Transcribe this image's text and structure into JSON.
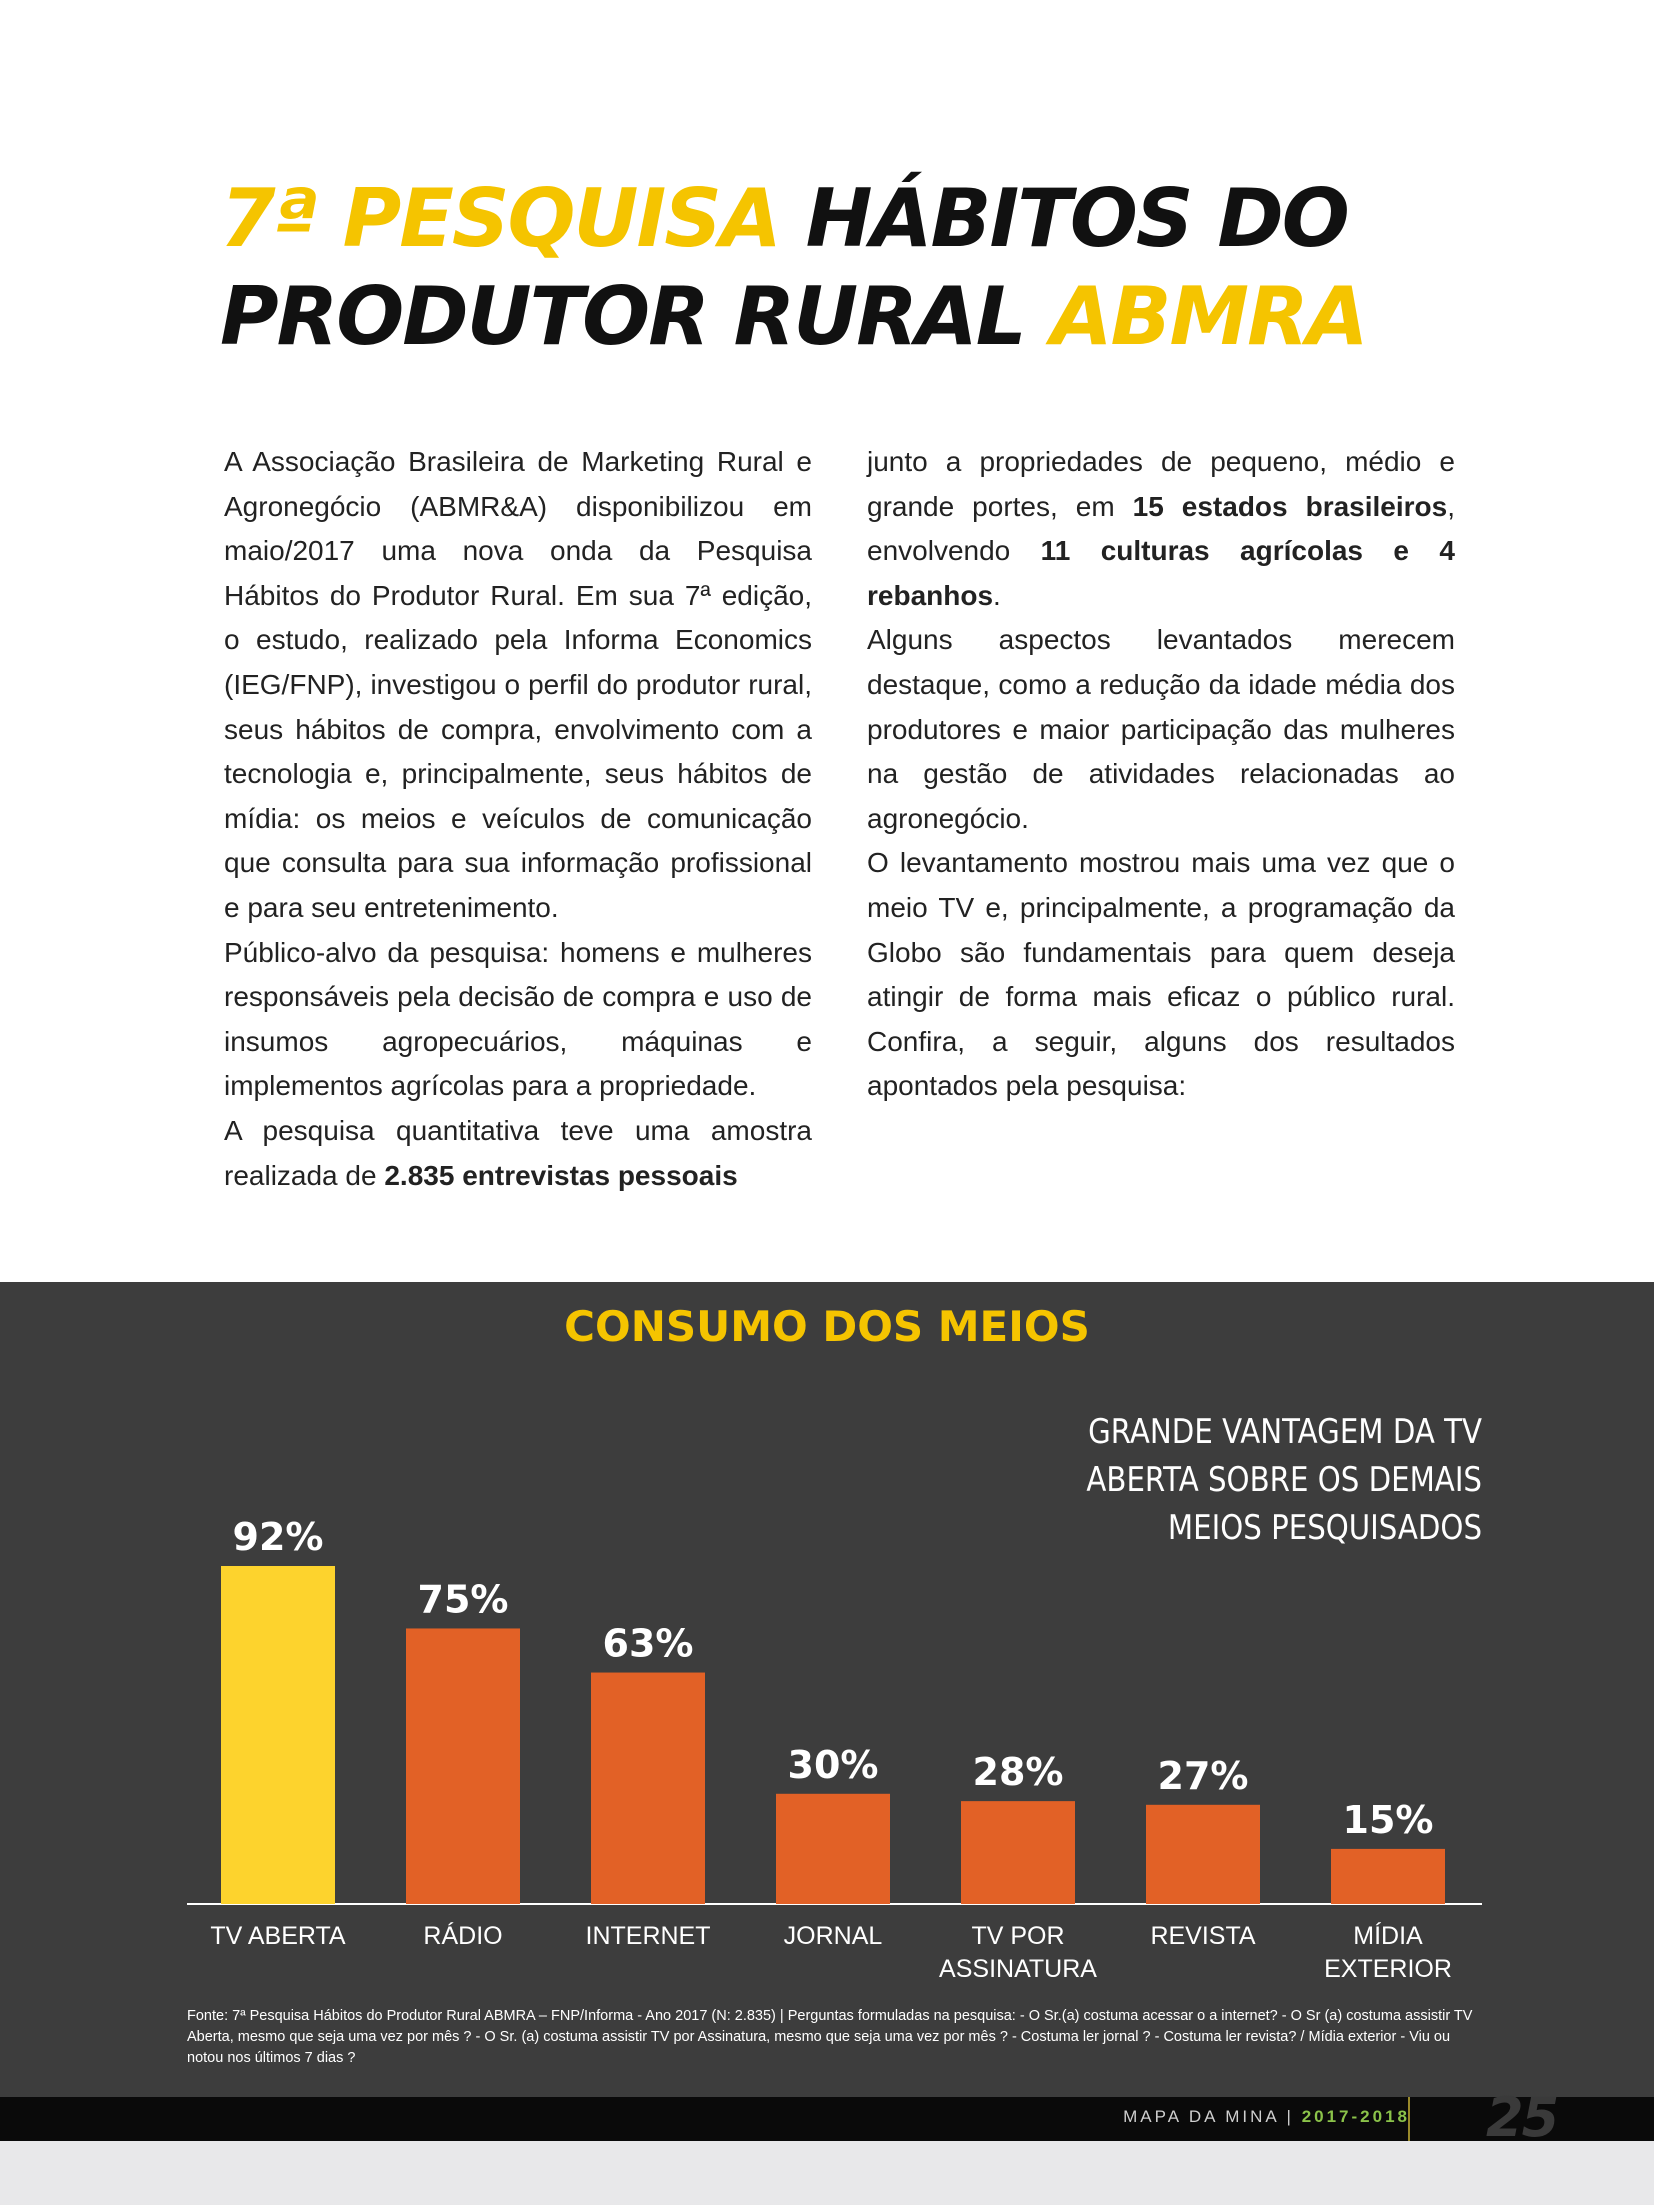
{
  "title": {
    "line1_a": "7ª PESQUISA",
    "line1_b": "HÁBITOS DO",
    "line2_a": "PRODUTOR RURAL",
    "line2_b": "ABMRA"
  },
  "article": {
    "left": {
      "p1": "A Associação Brasileira de Marketing Rural e Agronegócio (ABMR&A) disponibilizou em maio/2017 uma nova onda da Pesquisa Hábitos do Produtor Rural. Em sua 7ª edição, o estudo, realizado pela Informa Economics (IEG/FNP), investigou o perfil do produtor rural, seus hábitos de compra, envolvimento com a tecnologia e, principalmente, seus hábitos de mídia: os meios e veículos de comunicação que consulta para sua informação profissional e para seu entretenimento.",
      "p2": "Público-alvo da pesquisa: homens e mulheres responsáveis pela decisão de compra e uso de insumos agropecuários, máquinas e implementos agrícolas para a propriedade.",
      "p3_a": "A pesquisa quantitativa teve uma amostra realizada de",
      "p3_b": "2.835 entrevistas pessoais"
    },
    "right": {
      "p1_a": "junto a propriedades de pequeno, médio e grande portes, em",
      "p1_b": "15 estados brasileiros",
      "p1_c": ", envolvendo",
      "p1_d": "11 culturas agrícolas e 4 rebanhos",
      "p1_e": ".",
      "p2": "Alguns aspectos levantados merecem destaque, como a redução da idade média dos produtores e maior participação das mulheres na gestão de atividades relacionadas ao agronegócio.",
      "p3": "O levantamento mostrou mais uma vez que o meio TV e, principalmente, a programação da Globo são fundamentais para quem deseja atingir de forma mais eficaz o público rural. Confira, a seguir, alguns dos resultados apontados pela pesquisa:"
    }
  },
  "chart_data": {
    "type": "bar",
    "title": "CONSUMO DOS MEIOS",
    "annotation": "GRANDE VANTAGEM DA TV ABERTA SOBRE OS DEMAIS MEIOS PESQUISADOS",
    "categories": [
      [
        "TV ABERTA"
      ],
      [
        "RÁDIO"
      ],
      [
        "INTERNET"
      ],
      [
        "JORNAL"
      ],
      [
        "TV POR",
        "ASSINATURA"
      ],
      [
        "REVISTA"
      ],
      [
        "MÍDIA",
        "EXTERIOR"
      ]
    ],
    "values": [
      92,
      75,
      63,
      30,
      28,
      27,
      15
    ],
    "value_labels": [
      "92%",
      "75%",
      "63%",
      "30%",
      "28%",
      "27%",
      "15%"
    ],
    "unit": "%",
    "ylim": [
      0,
      100
    ],
    "colors": [
      "#fdd32d",
      "#e26126",
      "#e26126",
      "#e26126",
      "#e26126",
      "#e26126",
      "#e26126"
    ],
    "xlabel": "",
    "ylabel": ""
  },
  "source": "Fonte: 7ª Pesquisa Hábitos do Produtor Rural ABMRA – FNP/Informa - Ano 2017 (N: 2.835) | Perguntas formuladas na pesquisa: - O Sr.(a) costuma acessar o a internet? - O Sr (a) costuma assistir TV Aberta, mesmo que seja uma vez por mês ? - O Sr. (a) costuma assistir TV por Assinatura, mesmo que seja uma vez por mês ? - Costuma ler jornal ? - Costuma ler revista? / Mídia exterior - Viu ou notou nos últimos 7 dias ?",
  "footer": {
    "publication": "MAPA DA MINA",
    "separator": "|",
    "years": "2017-2018",
    "page_number": "25"
  }
}
